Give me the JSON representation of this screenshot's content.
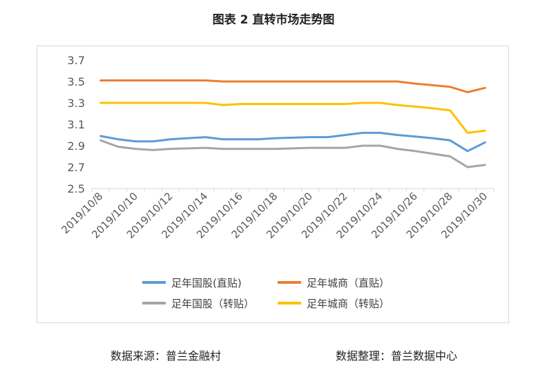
{
  "title": "图表 2  直转市场走势图",
  "footer": {
    "source": "数据来源：普兰金融村",
    "arranged": "数据整理：普兰数据中心"
  },
  "chart_data": {
    "type": "line",
    "title": "图表 2  直转市场走势图",
    "xlabel": "",
    "ylabel": "",
    "ylim": [
      2.5,
      3.7
    ],
    "yticks": [
      "3.7",
      "3.5",
      "3.3",
      "3.1",
      "2.9",
      "2.7",
      "2.5"
    ],
    "grid": false,
    "legend_position": "bottom",
    "x": [
      "2019/10/8",
      "2019/10/9",
      "2019/10/10",
      "2019/10/11",
      "2019/10/12",
      "2019/10/13",
      "2019/10/14",
      "2019/10/15",
      "2019/10/16",
      "2019/10/17",
      "2019/10/18",
      "2019/10/19",
      "2019/10/20",
      "2019/10/21",
      "2019/10/22",
      "2019/10/23",
      "2019/10/24",
      "2019/10/25",
      "2019/10/26",
      "2019/10/27",
      "2019/10/28",
      "2019/10/29",
      "2019/10/30"
    ],
    "xtick_labels": [
      "2019/10/8",
      "2019/10/10",
      "2019/10/12",
      "2019/10/14",
      "2019/10/16",
      "2019/10/18",
      "2019/10/20",
      "2019/10/22",
      "2019/10/24",
      "2019/10/26",
      "2019/10/28",
      "2019/10/30"
    ],
    "series": [
      {
        "name": "足年国股(直贴)",
        "color": "#5b9bd5",
        "values": [
          2.99,
          2.96,
          2.94,
          2.94,
          2.96,
          2.97,
          2.98,
          2.96,
          2.96,
          2.96,
          2.97,
          2.975,
          2.98,
          2.98,
          3.0,
          3.02,
          3.02,
          3.0,
          2.985,
          2.97,
          2.95,
          2.85,
          2.93
        ]
      },
      {
        "name": "足年城商（直贴）",
        "color": "#ed7d31",
        "values": [
          3.51,
          3.51,
          3.51,
          3.51,
          3.51,
          3.51,
          3.51,
          3.5,
          3.5,
          3.5,
          3.5,
          3.5,
          3.5,
          3.5,
          3.5,
          3.5,
          3.5,
          3.5,
          3.48,
          3.465,
          3.45,
          3.4,
          3.44
        ]
      },
      {
        "name": "足年国股（转贴）",
        "color": "#a5a5a5",
        "values": [
          2.95,
          2.89,
          2.87,
          2.86,
          2.87,
          2.875,
          2.88,
          2.87,
          2.87,
          2.87,
          2.87,
          2.875,
          2.88,
          2.88,
          2.88,
          2.9,
          2.9,
          2.87,
          2.85,
          2.825,
          2.8,
          2.7,
          2.72
        ]
      },
      {
        "name": "足年城商（转贴）",
        "color": "#ffc000",
        "values": [
          3.3,
          3.3,
          3.3,
          3.3,
          3.3,
          3.3,
          3.3,
          3.28,
          3.29,
          3.29,
          3.29,
          3.29,
          3.29,
          3.29,
          3.29,
          3.3,
          3.3,
          3.28,
          3.265,
          3.25,
          3.23,
          3.02,
          3.04
        ]
      }
    ]
  }
}
